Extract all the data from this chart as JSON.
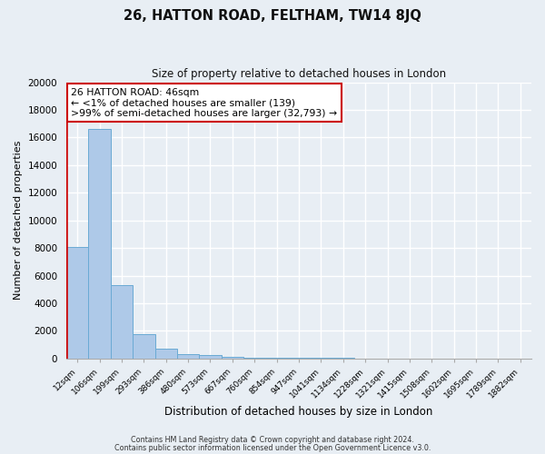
{
  "title": "26, HATTON ROAD, FELTHAM, TW14 8JQ",
  "subtitle": "Size of property relative to detached houses in London",
  "xlabel": "Distribution of detached houses by size in London",
  "ylabel": "Number of detached properties",
  "bar_color": "#aec9e8",
  "bar_edge_color": "#6aaad4",
  "categories": [
    "12sqm",
    "106sqm",
    "199sqm",
    "293sqm",
    "386sqm",
    "480sqm",
    "573sqm",
    "667sqm",
    "760sqm",
    "854sqm",
    "947sqm",
    "1041sqm",
    "1134sqm",
    "1228sqm",
    "1321sqm",
    "1415sqm",
    "1508sqm",
    "1602sqm",
    "1695sqm",
    "1789sqm",
    "1882sqm"
  ],
  "values": [
    8100,
    16600,
    5300,
    1750,
    700,
    350,
    250,
    100,
    50,
    50,
    50,
    30,
    30,
    20,
    20,
    20,
    15,
    15,
    10,
    10,
    10
  ],
  "ylim": [
    0,
    20000
  ],
  "yticks": [
    0,
    2000,
    4000,
    6000,
    8000,
    10000,
    12000,
    14000,
    16000,
    18000,
    20000
  ],
  "marker_color": "#cc0000",
  "annotation_title": "26 HATTON ROAD: 46sqm",
  "annotation_line1": "← <1% of detached houses are smaller (139)",
  "annotation_line2": ">99% of semi-detached houses are larger (32,793) →",
  "annotation_box_edge": "#cc0000",
  "footer1": "Contains HM Land Registry data © Crown copyright and database right 2024.",
  "footer2": "Contains public sector information licensed under the Open Government Licence v3.0.",
  "background_color": "#e8eef4",
  "grid_color": "#ffffff"
}
